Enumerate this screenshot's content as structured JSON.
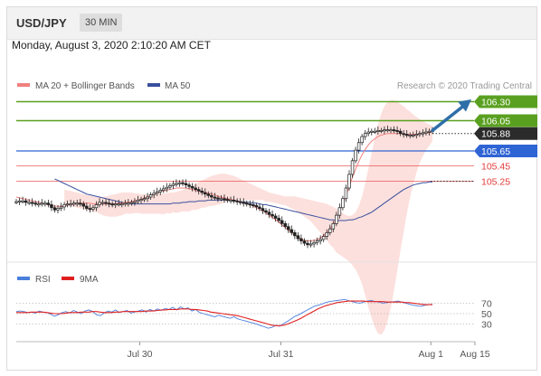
{
  "header": {
    "pair": "USD/JPY",
    "timeframe": "30 MIN"
  },
  "datetime": "Monday, August 3, 2020 2:10:20 AM CET",
  "legend": {
    "ma": "MA 20 + Bollinger Bands",
    "ma50": "MA 50",
    "rsi": "RSI",
    "ma9": "9MA"
  },
  "credit": "Research © 2020 Trading Central",
  "colors": {
    "green": "#5aa020",
    "blue": "#2f64d4",
    "red": "#e53a3a",
    "ma20": "#f0807f",
    "ma50": "#3a4f9e",
    "band": "#fbd5d2",
    "arrow": "#2e6ea8",
    "rsi": "#4a7fdc",
    "rsi_ma": "#e02020"
  },
  "chart_data": [
    {
      "type": "candlestick",
      "ylim": [
        104.3,
        106.45
      ],
      "x_range": [
        0,
        52
      ],
      "xticks": [
        {
          "label": "Jul 30",
          "x": 14
        },
        {
          "label": "Jul 31",
          "x": 30
        },
        {
          "label": "Aug 1",
          "x": 47
        },
        {
          "label": "Aug 15",
          "x": 52
        }
      ],
      "levels": [
        {
          "value": 106.3,
          "label": "106.30",
          "kind": "resistance"
        },
        {
          "value": 106.05,
          "label": "106.05",
          "kind": "resistance"
        },
        {
          "value": 105.88,
          "label": "105.88",
          "kind": "last"
        },
        {
          "value": 105.65,
          "label": "105.65",
          "kind": "pivot"
        },
        {
          "value": 105.45,
          "label": "105.45",
          "kind": "support"
        },
        {
          "value": 105.25,
          "label": "105.25",
          "kind": "support"
        }
      ],
      "candles": [
        104.98,
        104.99,
        104.99,
        104.97,
        104.97,
        104.96,
        104.95,
        104.95,
        104.96,
        104.96,
        104.94,
        104.9,
        104.87,
        104.89,
        104.91,
        104.94,
        104.95,
        104.95,
        104.96,
        104.96,
        104.95,
        104.92,
        104.89,
        104.88,
        104.9,
        104.94,
        104.97,
        104.97,
        104.96,
        104.95,
        104.94,
        104.95,
        104.95,
        104.95,
        104.96,
        104.96,
        104.97,
        104.98,
        105.0,
        105.01,
        105.02,
        105.04,
        105.07,
        105.09,
        105.11,
        105.13,
        105.15,
        105.17,
        105.19,
        105.21,
        105.22,
        105.23,
        105.22,
        105.2,
        105.18,
        105.16,
        105.14,
        105.12,
        105.1,
        105.08,
        105.06,
        105.04,
        105.03,
        105.02,
        105.02,
        105.01,
        105.0,
        105.0,
        104.99,
        104.98,
        104.97,
        104.96,
        104.95,
        104.94,
        104.93,
        104.91,
        104.89,
        104.86,
        104.84,
        104.81,
        104.79,
        104.76,
        104.73,
        104.69,
        104.65,
        104.61,
        104.57,
        104.53,
        104.49,
        104.46,
        104.43,
        104.41,
        104.42,
        104.44,
        104.46,
        104.48,
        104.52,
        104.57,
        104.62,
        104.69,
        104.8,
        104.9,
        105.02,
        105.16,
        105.34,
        105.52,
        105.66,
        105.76,
        105.84,
        105.88,
        105.9,
        105.91,
        105.91,
        105.92,
        105.92,
        105.93,
        105.93,
        105.93,
        105.92,
        105.91,
        105.88,
        105.87,
        105.86,
        105.86,
        105.86,
        105.87,
        105.88,
        105.89,
        105.9,
        105.91,
        105.92
      ],
      "ma20": [
        105.04,
        105.03,
        105.02,
        105.01,
        105.0,
        104.99,
        104.98,
        104.97,
        104.96,
        104.95,
        104.94,
        104.93,
        104.92,
        104.92,
        104.92,
        104.92,
        104.93,
        104.94,
        104.95,
        104.96,
        104.96,
        104.96,
        104.96,
        104.96,
        104.95,
        104.95,
        104.95,
        104.95,
        104.95,
        104.95,
        104.95,
        104.95,
        104.96,
        104.96,
        104.97,
        104.97,
        104.98,
        104.99,
        105.0,
        105.01,
        105.03,
        105.04,
        105.06,
        105.08,
        105.09,
        105.11,
        105.12,
        105.13,
        105.14,
        105.15,
        105.16,
        105.16,
        105.16,
        105.16,
        105.15,
        105.14,
        105.13,
        105.12,
        105.11,
        105.1,
        105.09,
        105.08,
        105.07,
        105.05,
        105.04,
        105.03,
        105.02,
        105.01,
        105.0,
        104.99,
        104.98,
        104.97,
        104.96,
        104.94,
        104.92,
        104.9,
        104.88,
        104.86,
        104.83,
        104.8,
        104.77,
        104.74,
        104.71,
        104.67,
        104.64,
        104.6,
        104.57,
        104.54,
        104.51,
        104.49,
        104.47,
        104.46,
        104.46,
        104.47,
        104.48,
        104.5,
        104.53,
        104.57,
        104.62,
        104.68,
        104.76,
        104.85,
        104.95,
        105.06,
        105.18,
        105.3,
        105.41,
        105.51,
        105.6,
        105.67,
        105.73,
        105.78,
        105.81,
        105.84,
        105.86,
        105.87,
        105.88,
        105.88,
        105.88,
        105.88,
        105.88,
        105.87,
        105.87,
        105.87,
        105.87,
        105.87,
        105.88,
        105.88,
        105.89,
        105.89,
        105.9
      ],
      "ma50": [
        105.28,
        105.26,
        105.24,
        105.22,
        105.2,
        105.18,
        105.16,
        105.14,
        105.12,
        105.1,
        105.08,
        105.07,
        105.06,
        105.05,
        105.04,
        105.03,
        105.02,
        105.01,
        105.0,
        104.99,
        104.98,
        104.97,
        104.96,
        104.96,
        104.95,
        104.95,
        104.95,
        104.95,
        104.95,
        104.95,
        104.95,
        104.95,
        104.95,
        104.95,
        104.95,
        104.95,
        104.95,
        104.96,
        104.96,
        104.96,
        104.97,
        104.97,
        104.98,
        104.98,
        104.98,
        104.99,
        104.99,
        104.99,
        105.0,
        105.0,
        105.0,
        105.0,
        105.0,
        105.0,
        105.0,
        105.0,
        104.99,
        104.99,
        104.98,
        104.98,
        104.97,
        104.97,
        104.96,
        104.96,
        104.95,
        104.94,
        104.94,
        104.93,
        104.92,
        104.91,
        104.9,
        104.89,
        104.88,
        104.87,
        104.86,
        104.85,
        104.84,
        104.83,
        104.82,
        104.81,
        104.8,
        104.79,
        104.78,
        104.77,
        104.76,
        104.75,
        104.74,
        104.74,
        104.73,
        104.73,
        104.73,
        104.73,
        104.74,
        104.74,
        104.75,
        104.77,
        104.78,
        104.8,
        104.82,
        104.84,
        104.87,
        104.9,
        104.93,
        104.96,
        104.99,
        105.02,
        105.05,
        105.08,
        105.11,
        105.14,
        105.16,
        105.18,
        105.2,
        105.21,
        105.22,
        105.23,
        105.23,
        105.24,
        105.24
      ],
      "band_upper": [
        105.14,
        105.13,
        105.12,
        105.11,
        105.1,
        105.09,
        105.08,
        105.07,
        105.06,
        105.05,
        105.04,
        105.04,
        105.04,
        105.05,
        105.06,
        105.07,
        105.08,
        105.09,
        105.1,
        105.1,
        105.1,
        105.1,
        105.09,
        105.09,
        105.08,
        105.08,
        105.08,
        105.08,
        105.08,
        105.08,
        105.08,
        105.09,
        105.09,
        105.1,
        105.1,
        105.11,
        105.12,
        105.13,
        105.15,
        105.17,
        105.19,
        105.21,
        105.24,
        105.26,
        105.28,
        105.3,
        105.32,
        105.33,
        105.34,
        105.35,
        105.35,
        105.34,
        105.33,
        105.32,
        105.3,
        105.28,
        105.26,
        105.24,
        105.22,
        105.2,
        105.18,
        105.16,
        105.14,
        105.12,
        105.1,
        105.09,
        105.08,
        105.07,
        105.06,
        105.05,
        105.05,
        105.05,
        105.05,
        105.04,
        105.03,
        105.02,
        105.01,
        105.0,
        104.99,
        104.98,
        104.97,
        104.96,
        104.95,
        104.93,
        104.91,
        104.89,
        104.86,
        104.83,
        104.8,
        104.79,
        104.8,
        104.84,
        104.92,
        105.05,
        105.22,
        105.42,
        105.62,
        105.82,
        106.0,
        106.14,
        106.24,
        106.3,
        106.32,
        106.32,
        106.3,
        106.27,
        106.24,
        106.2,
        106.17,
        106.13,
        106.1,
        106.07,
        106.04,
        106.02,
        106.0,
        105.98
      ],
      "band_lower": [
        104.94,
        104.93,
        104.92,
        104.91,
        104.9,
        104.89,
        104.88,
        104.87,
        104.86,
        104.85,
        104.84,
        104.82,
        104.8,
        104.79,
        104.78,
        104.78,
        104.78,
        104.79,
        104.8,
        104.82,
        104.82,
        104.82,
        104.83,
        104.83,
        104.82,
        104.82,
        104.82,
        104.82,
        104.82,
        104.82,
        104.82,
        104.81,
        104.83,
        104.82,
        104.84,
        104.83,
        104.84,
        104.85,
        104.85,
        104.85,
        104.87,
        104.87,
        104.88,
        104.9,
        104.9,
        104.92,
        104.92,
        104.93,
        104.94,
        104.95,
        104.97,
        104.98,
        104.99,
        105.0,
        105.0,
        105.0,
        105.0,
        105.0,
        105.0,
        105.0,
        105.0,
        105.0,
        105.0,
        104.98,
        104.98,
        104.97,
        104.96,
        104.95,
        104.94,
        104.93,
        104.91,
        104.89,
        104.87,
        104.84,
        104.81,
        104.78,
        104.75,
        104.72,
        104.67,
        104.62,
        104.57,
        104.52,
        104.47,
        104.41,
        104.37,
        104.31,
        104.28,
        104.25,
        104.22,
        104.19,
        104.14,
        104.08,
        104.0,
        103.89,
        103.74,
        103.58,
        103.44,
        103.32,
        103.24,
        103.22,
        103.28,
        103.4,
        103.58,
        103.8,
        104.06,
        104.33,
        104.58,
        104.82,
        105.03,
        105.21,
        105.36,
        105.49,
        105.58,
        105.66,
        105.72,
        105.78
      ]
    },
    {
      "type": "line",
      "ylim": [
        0,
        100
      ],
      "yticks": [
        70,
        50,
        30
      ],
      "series": [
        {
          "name": "RSI",
          "values": [
            54,
            55,
            54,
            52,
            53,
            51,
            55,
            53,
            52,
            49,
            45,
            48,
            52,
            54,
            51,
            56,
            53,
            50,
            55,
            57,
            54,
            48,
            46,
            51,
            55,
            53,
            57,
            52,
            54,
            56,
            51,
            53,
            55,
            57,
            53,
            58,
            55,
            59,
            56,
            60,
            58,
            62,
            57,
            63,
            59,
            61,
            55,
            58,
            52,
            50,
            48,
            46,
            44,
            47,
            45,
            43,
            41,
            44,
            40,
            38,
            36,
            34,
            32,
            30,
            27,
            25,
            22,
            24,
            28,
            26,
            31,
            35,
            40,
            45,
            48,
            52,
            56,
            60,
            64,
            66,
            68,
            71,
            73,
            74,
            75,
            76,
            77,
            75,
            73,
            71,
            70,
            72,
            74,
            75,
            73,
            72,
            70,
            71,
            72,
            73,
            74,
            72,
            70,
            68,
            66,
            65,
            64,
            66,
            67,
            68
          ]
        },
        {
          "name": "9MA",
          "values": [
            52,
            52,
            52,
            52,
            53,
            53,
            53,
            53,
            52,
            51,
            50,
            50,
            50,
            51,
            52,
            52,
            52,
            53,
            53,
            53,
            54,
            54,
            53,
            52,
            52,
            52,
            53,
            53,
            54,
            54,
            54,
            54,
            54,
            54,
            55,
            55,
            55,
            56,
            57,
            57,
            58,
            58,
            58,
            59,
            59,
            59,
            58,
            58,
            57,
            56,
            55,
            53,
            52,
            51,
            50,
            49,
            48,
            47,
            46,
            44,
            42,
            40,
            38,
            36,
            34,
            32,
            30,
            28,
            27,
            27,
            28,
            30,
            33,
            36,
            39,
            43,
            47,
            51,
            55,
            59,
            62,
            65,
            67,
            69,
            71,
            72,
            73,
            74,
            74,
            74,
            74,
            74,
            73,
            73,
            73,
            73,
            73,
            72,
            72,
            72,
            72,
            72,
            71,
            71,
            70,
            69,
            68,
            67,
            67,
            67
          ]
        }
      ]
    }
  ]
}
